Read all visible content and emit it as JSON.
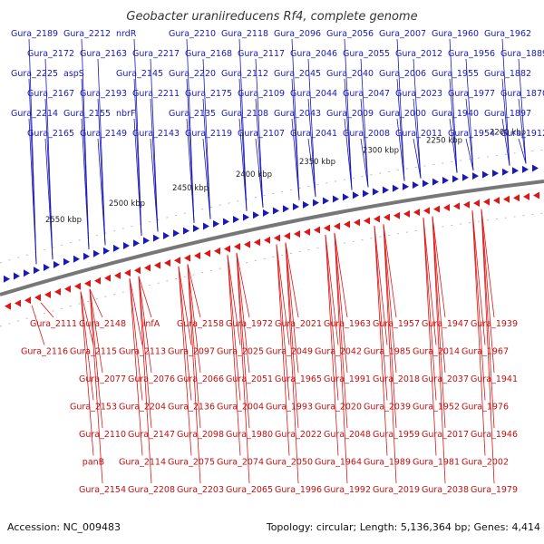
{
  "title": "Geobacter uraniireducens Rf4, complete genome",
  "footer": {
    "accession": "Accession: NC_009483",
    "topology": "Topology: circular; Length: 5,136,364 bp; Genes: 4,414"
  },
  "scale_labels": [
    "2200 kbp",
    "2250 kbp",
    "2300 kbp",
    "2350 kbp",
    "2400 kbp",
    "2450 kbp",
    "2500 kbp",
    "2550 kbp"
  ],
  "labels_top": [
    "Gura_2189",
    "Gura_2172",
    "Gura_2225",
    "Gura_2167",
    "Gura_2214",
    "Gura_2165",
    "Gura_2212",
    "Gura_2163",
    "aspS",
    "Gura_2193",
    "Gura_2155",
    "Gura_2149",
    "nrdR",
    "Gura_2217",
    "Gura_2145",
    "Gura_2211",
    "nbrF",
    "Gura_2143",
    "Gura_2210",
    "Gura_2168",
    "Gura_2220",
    "Gura_2175",
    "Gura_2135",
    "Gura_2119",
    "Gura_2118",
    "Gura_2117",
    "Gura_2112",
    "Gura_2109",
    "Gura_2108",
    "Gura_2107",
    "Gura_2096",
    "Gura_2046",
    "Gura_2045",
    "Gura_2044",
    "Gura_2043",
    "Gura_2041",
    "Gura_2056",
    "Gura_2055",
    "Gura_2040",
    "Gura_2047",
    "Gura_2009",
    "Gura_2008",
    "Gura_2007",
    "Gura_2012",
    "Gura_2006",
    "Gura_2023",
    "Gura_2000",
    "Gura_2011",
    "Gura_1960",
    "Gura_1956",
    "Gura_1955",
    "Gura_1977",
    "Gura_1940",
    "Gura_1954",
    "Gura_1962",
    "Gura_1889",
    "Gura_1882",
    "Gura_1870",
    "Gura_1897",
    "Gura_1912"
  ],
  "labels_bottom": [
    "Gura_1939",
    "Gura_1967",
    "Gura_1941",
    "Gura_1976",
    "Gura_1946",
    "Gura_2002",
    "Gura_1979",
    "Gura_1947",
    "Gura_2014",
    "Gura_2037",
    "Gura_1952",
    "Gura_2017",
    "Gura_1981",
    "Gura_2038",
    "Gura_1957",
    "Gura_1985",
    "Gura_2018",
    "Gura_2039",
    "Gura_1959",
    "Gura_1989",
    "Gura_2019",
    "Gura_1963",
    "Gura_2042",
    "Gura_1991",
    "Gura_2020",
    "Gura_2048",
    "Gura_1964",
    "Gura_1992",
    "Gura_2021",
    "Gura_2049",
    "Gura_1965",
    "Gura_1993",
    "Gura_2022",
    "Gura_2050",
    "Gura_1996",
    "Gura_1972",
    "Gura_2025",
    "Gura_2051",
    "Gura_2004",
    "Gura_1980",
    "Gura_2074",
    "Gura_2065",
    "Gura_2158",
    "Gura_2097",
    "Gura_2066",
    "Gura_2136",
    "Gura_2098",
    "Gura_2075",
    "Gura_2203",
    "infA",
    "Gura_2113",
    "Gura_2076",
    "Gura_2204",
    "Gura_2147",
    "Gura_2114",
    "Gura_2208",
    "Gura_2148",
    "Gura_2115",
    "Gura_2077",
    "Gura_2153",
    "Gura_2110",
    "panB",
    "Gura_2154",
    "Gura_2111",
    "Gura_2116"
  ],
  "colors": {
    "forward": "#1a1ab8",
    "reverse": "#e01515",
    "backbone": "#777777"
  }
}
